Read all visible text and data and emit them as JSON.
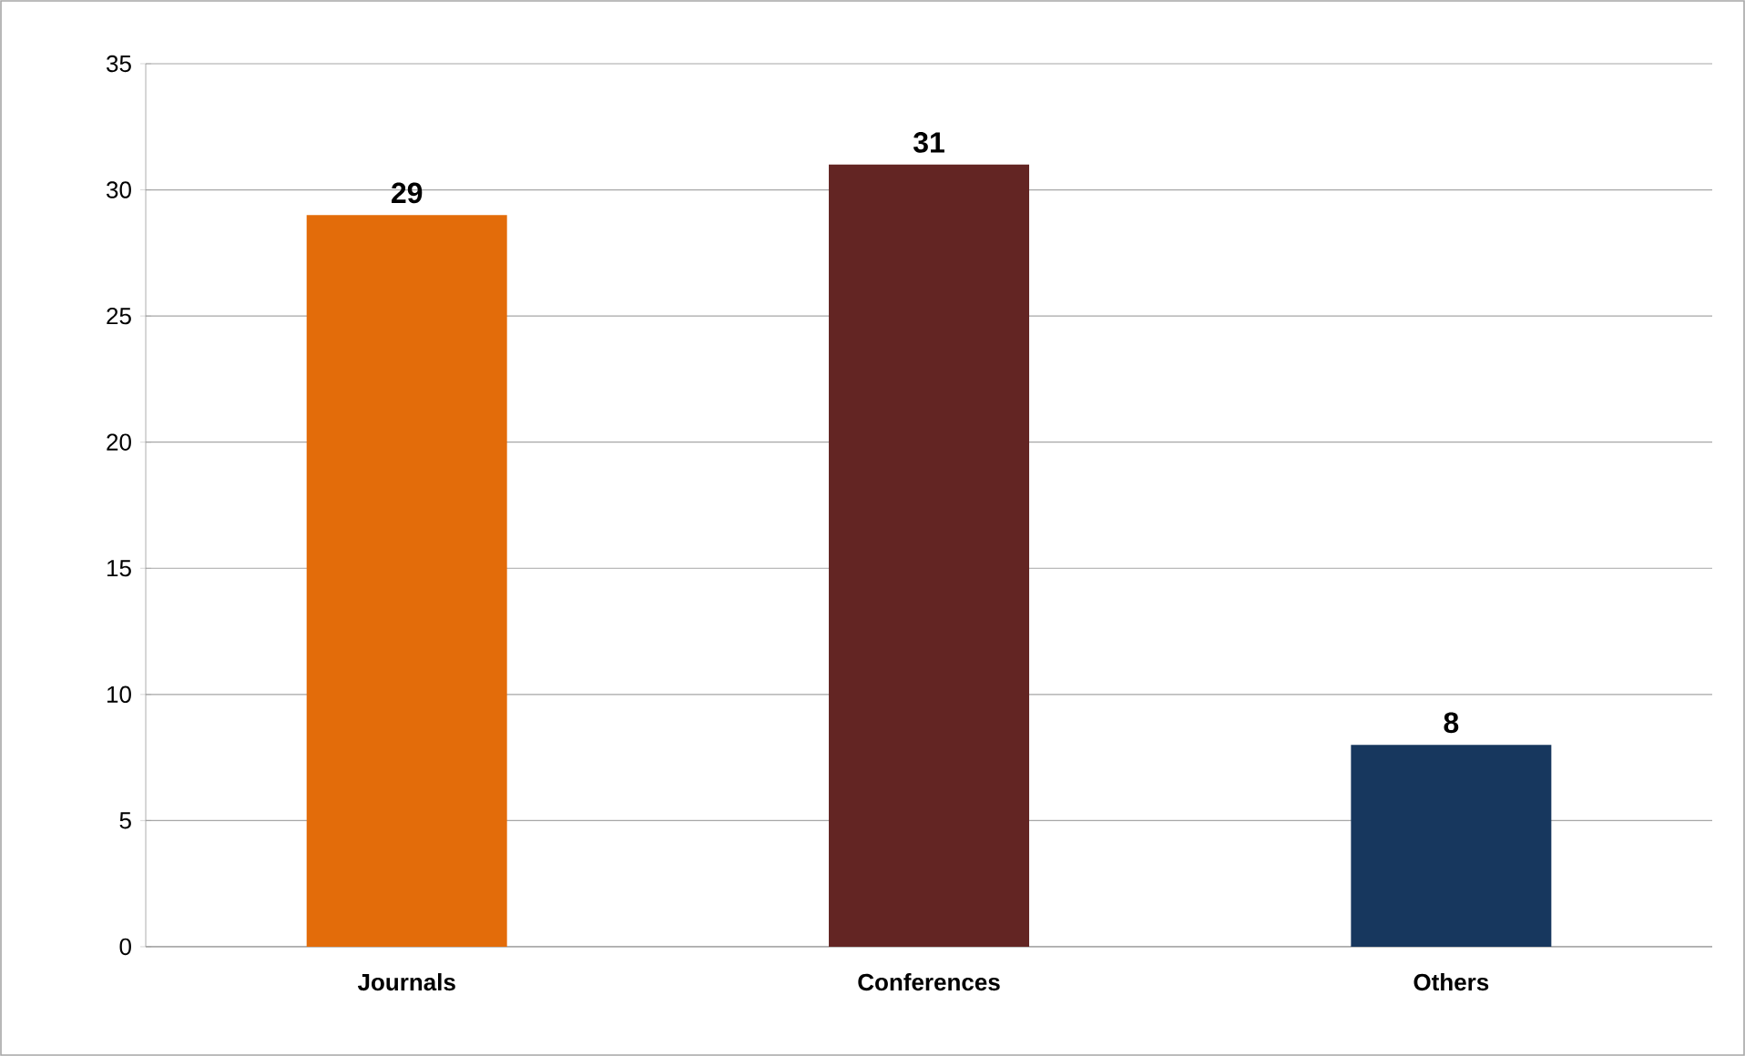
{
  "chart_data": {
    "type": "bar",
    "categories": [
      "Journals",
      "Conferences",
      "Others"
    ],
    "values": [
      29,
      31,
      8
    ],
    "colors": [
      "#e36c0a",
      "#632523",
      "#17375e"
    ],
    "ylim": [
      0,
      35
    ],
    "yticks": [
      0,
      5,
      10,
      15,
      20,
      25,
      30,
      35
    ],
    "grid": "y",
    "data_labels": true
  }
}
